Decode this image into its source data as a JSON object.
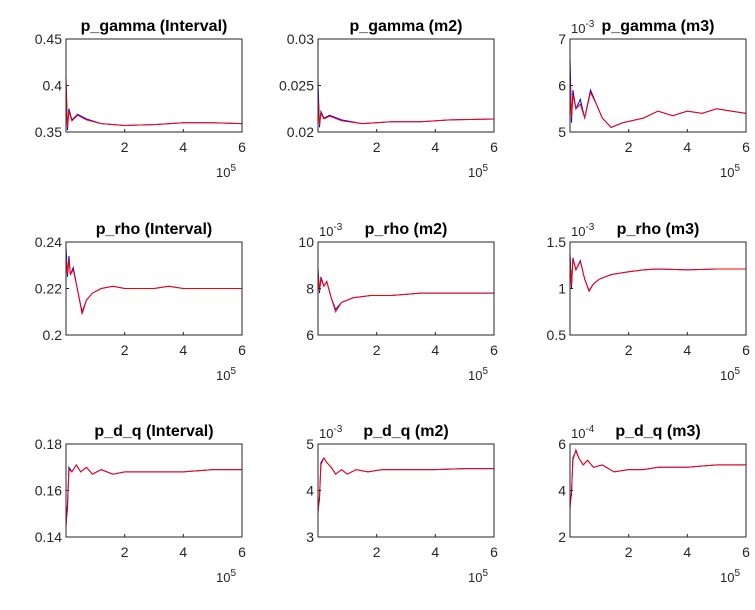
{
  "chart_data": [
    {
      "type": "line",
      "title": "p_gamma (Interval)",
      "ylim": [
        0.35,
        0.45
      ],
      "yticks": [
        0.35,
        0.4,
        0.45
      ],
      "ytick_labels": [
        "0.35",
        "0.4",
        "0.45"
      ],
      "y_multiplier": "",
      "xlim": [
        0,
        6
      ],
      "xticks": [
        2,
        4,
        6
      ],
      "xtick_labels": [
        "2",
        "4",
        "6"
      ],
      "x_multiplier": {
        "base": "10",
        "exp": "5"
      },
      "series": [
        {
          "color": "#0000ff",
          "x": [
            0,
            0.05,
            0.1,
            0.2,
            0.4,
            0.7,
            1.2,
            2,
            3,
            4,
            5,
            6
          ],
          "y": [
            0.4,
            0.352,
            0.375,
            0.363,
            0.369,
            0.364,
            0.359,
            0.357,
            0.358,
            0.36,
            0.36,
            0.359
          ]
        },
        {
          "color": "#ff0000",
          "x": [
            0,
            0.05,
            0.1,
            0.2,
            0.4,
            0.7,
            1.2,
            2,
            3,
            4,
            5,
            6
          ],
          "y": [
            0.41,
            0.355,
            0.372,
            0.362,
            0.368,
            0.363,
            0.359,
            0.357,
            0.358,
            0.36,
            0.36,
            0.359
          ]
        }
      ]
    },
    {
      "type": "line",
      "title": "p_gamma (m2)",
      "ylim": [
        0.02,
        0.03
      ],
      "yticks": [
        0.02,
        0.025,
        0.03
      ],
      "ytick_labels": [
        "0.02",
        "0.025",
        "0.03"
      ],
      "y_multiplier": "",
      "xlim": [
        0,
        6
      ],
      "xticks": [
        2,
        4,
        6
      ],
      "xtick_labels": [
        "2",
        "4",
        "6"
      ],
      "x_multiplier": {
        "base": "10",
        "exp": "5"
      },
      "series": [
        {
          "color": "#0000ff",
          "x": [
            0,
            0.05,
            0.1,
            0.2,
            0.4,
            0.8,
            1.5,
            2.5,
            3.5,
            4.5,
            6
          ],
          "y": [
            0.0255,
            0.0205,
            0.0222,
            0.0215,
            0.0218,
            0.0213,
            0.0209,
            0.0211,
            0.0211,
            0.0213,
            0.0214
          ]
        },
        {
          "color": "#ff0000",
          "x": [
            0,
            0.05,
            0.1,
            0.2,
            0.4,
            0.8,
            1.5,
            2.5,
            3.5,
            4.5,
            6
          ],
          "y": [
            0.024,
            0.0208,
            0.022,
            0.0214,
            0.0217,
            0.0212,
            0.0209,
            0.0211,
            0.0211,
            0.0213,
            0.0214
          ]
        }
      ]
    },
    {
      "type": "line",
      "title": "p_gamma (m3)",
      "ylim": [
        5,
        7
      ],
      "yticks": [
        5,
        6,
        7
      ],
      "ytick_labels": [
        "5",
        "6",
        "7"
      ],
      "y_multiplier": "10^{-3}",
      "xlim": [
        0,
        6
      ],
      "xticks": [
        2,
        4,
        6
      ],
      "xtick_labels": [
        "2",
        "4",
        "6"
      ],
      "x_multiplier": {
        "base": "10",
        "exp": "5"
      },
      "series": [
        {
          "color": "#0000ff",
          "x": [
            0,
            0.05,
            0.1,
            0.2,
            0.35,
            0.5,
            0.7,
            0.9,
            1.1,
            1.4,
            1.8,
            2.5,
            3,
            3.5,
            4,
            4.5,
            5,
            5.5,
            6
          ],
          "y": [
            6.6,
            5.2,
            5.9,
            5.5,
            5.7,
            5.3,
            5.9,
            5.6,
            5.3,
            5.1,
            5.2,
            5.3,
            5.45,
            5.35,
            5.45,
            5.4,
            5.5,
            5.45,
            5.4
          ]
        },
        {
          "color": "#ff0000",
          "x": [
            0,
            0.05,
            0.1,
            0.2,
            0.35,
            0.5,
            0.7,
            0.9,
            1.1,
            1.4,
            1.8,
            2.5,
            3,
            3.5,
            4,
            4.5,
            5,
            5.5,
            6
          ],
          "y": [
            6.2,
            5.3,
            5.8,
            5.5,
            5.6,
            5.3,
            5.85,
            5.6,
            5.3,
            5.1,
            5.2,
            5.3,
            5.45,
            5.35,
            5.45,
            5.4,
            5.5,
            5.45,
            5.4
          ]
        }
      ]
    },
    {
      "type": "line",
      "title": "p_rho (Interval)",
      "ylim": [
        0.2,
        0.24
      ],
      "yticks": [
        0.2,
        0.22,
        0.24
      ],
      "ytick_labels": [
        "0.2",
        "0.22",
        "0.24"
      ],
      "y_multiplier": "",
      "xlim": [
        0,
        6
      ],
      "xticks": [
        2,
        4,
        6
      ],
      "xtick_labels": [
        "2",
        "4",
        "6"
      ],
      "x_multiplier": {
        "base": "10",
        "exp": "5"
      },
      "series": [
        {
          "color": "#0000ff",
          "x": [
            0,
            0.05,
            0.1,
            0.15,
            0.25,
            0.4,
            0.55,
            0.7,
            0.9,
            1.2,
            1.6,
            2,
            3,
            3.5,
            4,
            5,
            6
          ],
          "y": [
            0.238,
            0.225,
            0.234,
            0.226,
            0.229,
            0.219,
            0.21,
            0.215,
            0.218,
            0.22,
            0.221,
            0.22,
            0.22,
            0.221,
            0.22,
            0.22,
            0.22
          ]
        },
        {
          "color": "#ff0000",
          "x": [
            0,
            0.05,
            0.1,
            0.15,
            0.25,
            0.4,
            0.55,
            0.7,
            0.9,
            1.2,
            1.6,
            2,
            3,
            3.5,
            4,
            5,
            6
          ],
          "y": [
            0.235,
            0.226,
            0.232,
            0.226,
            0.228,
            0.219,
            0.209,
            0.215,
            0.218,
            0.22,
            0.221,
            0.22,
            0.22,
            0.221,
            0.22,
            0.22,
            0.22
          ]
        }
      ]
    },
    {
      "type": "line",
      "title": "p_rho (m2)",
      "ylim": [
        6,
        10
      ],
      "yticks": [
        6,
        8,
        10
      ],
      "ytick_labels": [
        "6",
        "8",
        "10"
      ],
      "y_multiplier": "10^{-3}",
      "xlim": [
        0,
        6
      ],
      "xticks": [
        2,
        4,
        6
      ],
      "xtick_labels": [
        "2",
        "4",
        "6"
      ],
      "x_multiplier": {
        "base": "10",
        "exp": "5"
      },
      "series": [
        {
          "color": "#0000ff",
          "x": [
            0,
            0.05,
            0.1,
            0.2,
            0.3,
            0.45,
            0.6,
            0.8,
            1.2,
            1.8,
            2.5,
            3.5,
            4.5,
            6
          ],
          "y": [
            8.9,
            7.8,
            8.5,
            8.1,
            8.3,
            7.6,
            7.1,
            7.4,
            7.6,
            7.7,
            7.7,
            7.8,
            7.8,
            7.8
          ]
        },
        {
          "color": "#ff0000",
          "x": [
            0,
            0.05,
            0.1,
            0.2,
            0.3,
            0.45,
            0.6,
            0.8,
            1.2,
            1.8,
            2.5,
            3.5,
            4.5,
            6
          ],
          "y": [
            8.7,
            7.9,
            8.4,
            8.1,
            8.3,
            7.6,
            7.0,
            7.4,
            7.6,
            7.7,
            7.7,
            7.8,
            7.8,
            7.8
          ]
        }
      ]
    },
    {
      "type": "line",
      "title": "p_rho (m3)",
      "ylim": [
        0.5,
        1.5
      ],
      "yticks": [
        0.5,
        1,
        1.5
      ],
      "ytick_labels": [
        "0.5",
        "1",
        "1.5"
      ],
      "y_multiplier": "10^{-3}",
      "xlim": [
        0,
        6
      ],
      "xticks": [
        2,
        4,
        6
      ],
      "xtick_labels": [
        "2",
        "4",
        "6"
      ],
      "x_multiplier": {
        "base": "10",
        "exp": "5"
      },
      "series": [
        {
          "color": "#0000ff",
          "x": [
            0,
            0.05,
            0.1,
            0.2,
            0.35,
            0.5,
            0.65,
            0.8,
            1,
            1.4,
            2,
            2.5,
            3,
            4,
            5,
            6
          ],
          "y": [
            1.38,
            1.0,
            1.33,
            1.2,
            1.3,
            1.1,
            0.98,
            1.05,
            1.1,
            1.15,
            1.18,
            1.2,
            1.21,
            1.2,
            1.21,
            1.21
          ]
        },
        {
          "color": "#ff0000",
          "x": [
            0,
            0.05,
            0.1,
            0.2,
            0.35,
            0.5,
            0.65,
            0.8,
            1,
            1.4,
            2,
            2.5,
            3,
            4,
            5,
            6
          ],
          "y": [
            1.35,
            1.02,
            1.32,
            1.2,
            1.29,
            1.1,
            0.97,
            1.05,
            1.1,
            1.15,
            1.18,
            1.2,
            1.21,
            1.2,
            1.21,
            1.21
          ]
        }
      ]
    },
    {
      "type": "line",
      "title": "p_d_q (Interval)",
      "ylim": [
        0.14,
        0.18
      ],
      "yticks": [
        0.14,
        0.16,
        0.18
      ],
      "ytick_labels": [
        "0.14",
        "0.16",
        "0.18"
      ],
      "y_multiplier": "",
      "xlim": [
        0,
        6
      ],
      "xticks": [
        2,
        4,
        6
      ],
      "xtick_labels": [
        "2",
        "4",
        "6"
      ],
      "x_multiplier": {
        "base": "10",
        "exp": "5"
      },
      "series": [
        {
          "color": "#0000ff",
          "x": [
            0,
            0.05,
            0.1,
            0.2,
            0.35,
            0.5,
            0.7,
            0.9,
            1.2,
            1.6,
            2,
            3,
            4,
            5,
            6
          ],
          "y": [
            0.146,
            0.152,
            0.17,
            0.168,
            0.171,
            0.168,
            0.17,
            0.167,
            0.169,
            0.167,
            0.168,
            0.168,
            0.168,
            0.169,
            0.169
          ]
        },
        {
          "color": "#ff0000",
          "x": [
            0,
            0.05,
            0.1,
            0.2,
            0.35,
            0.5,
            0.7,
            0.9,
            1.2,
            1.6,
            2,
            3,
            4,
            5,
            6
          ],
          "y": [
            0.144,
            0.155,
            0.169,
            0.168,
            0.171,
            0.168,
            0.17,
            0.167,
            0.169,
            0.167,
            0.168,
            0.168,
            0.168,
            0.169,
            0.169
          ]
        }
      ]
    },
    {
      "type": "line",
      "title": "p_d_q (m2)",
      "ylim": [
        3,
        5
      ],
      "yticks": [
        3,
        4,
        5
      ],
      "ytick_labels": [
        "3",
        "4",
        "5"
      ],
      "y_multiplier": "10^{-3}",
      "xlim": [
        0,
        6
      ],
      "xticks": [
        2,
        4,
        6
      ],
      "xtick_labels": [
        "2",
        "4",
        "6"
      ],
      "x_multiplier": {
        "base": "10",
        "exp": "5"
      },
      "series": [
        {
          "color": "#0000ff",
          "x": [
            0,
            0.05,
            0.1,
            0.2,
            0.3,
            0.45,
            0.6,
            0.8,
            1,
            1.3,
            1.7,
            2.2,
            3,
            4,
            5,
            6
          ],
          "y": [
            3.6,
            3.8,
            4.6,
            4.7,
            4.6,
            4.5,
            4.35,
            4.45,
            4.35,
            4.45,
            4.4,
            4.45,
            4.45,
            4.45,
            4.47,
            4.47
          ]
        },
        {
          "color": "#ff0000",
          "x": [
            0,
            0.05,
            0.1,
            0.2,
            0.3,
            0.45,
            0.6,
            0.8,
            1,
            1.3,
            1.7,
            2.2,
            3,
            4,
            5,
            6
          ],
          "y": [
            3.5,
            3.9,
            4.55,
            4.7,
            4.6,
            4.5,
            4.35,
            4.45,
            4.35,
            4.45,
            4.4,
            4.45,
            4.45,
            4.45,
            4.47,
            4.47
          ]
        }
      ]
    },
    {
      "type": "line",
      "title": "p_d_q (m3)",
      "ylim": [
        2,
        6
      ],
      "yticks": [
        2,
        4,
        6
      ],
      "ytick_labels": [
        "2",
        "4",
        "6"
      ],
      "y_multiplier": "10^{-4}",
      "xlim": [
        0,
        6
      ],
      "xticks": [
        2,
        4,
        6
      ],
      "xtick_labels": [
        "2",
        "4",
        "6"
      ],
      "x_multiplier": {
        "base": "10",
        "exp": "5"
      },
      "series": [
        {
          "color": "#0000ff",
          "x": [
            0,
            0.05,
            0.1,
            0.2,
            0.3,
            0.45,
            0.6,
            0.8,
            1.1,
            1.5,
            2,
            2.5,
            3,
            4,
            5,
            6
          ],
          "y": [
            3.5,
            3.8,
            5.4,
            5.7,
            5.4,
            5.1,
            5.3,
            5.0,
            5.1,
            4.8,
            4.9,
            4.9,
            5.0,
            5.0,
            5.1,
            5.1
          ]
        },
        {
          "color": "#ff0000",
          "x": [
            0,
            0.05,
            0.1,
            0.2,
            0.3,
            0.45,
            0.6,
            0.8,
            1.1,
            1.5,
            2,
            2.5,
            3,
            4,
            5,
            6
          ],
          "y": [
            3.2,
            4.0,
            5.3,
            5.75,
            5.4,
            5.1,
            5.3,
            5.0,
            5.1,
            4.8,
            4.9,
            4.9,
            5.0,
            5.0,
            5.1,
            5.1
          ]
        }
      ]
    }
  ]
}
